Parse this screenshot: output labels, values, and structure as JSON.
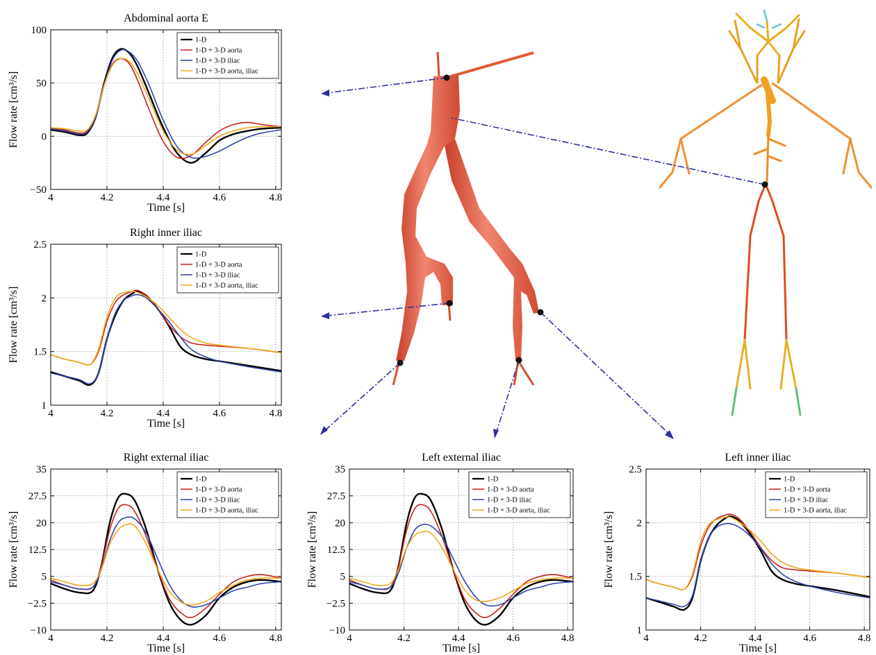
{
  "colors": {
    "1-D": "#000000",
    "1-D + 3-D aorta": "#c8201c",
    "1-D + 3-D iliac": "#2b44a8",
    "1-D + 3-D aorta, iliac": "#f0a818",
    "arrow": "#2a2ea0"
  },
  "legend_labels": [
    "1-D",
    "1-D + 3-D aorta",
    "1-D + 3-D iliac",
    "1-D + 3-D aorta, iliac"
  ],
  "chart_data": [
    {
      "id": "aorta",
      "type": "line",
      "title": "Abdominal aorta E",
      "xlabel": "Time [s]",
      "ylabel": "Flow rate [cm³/s]",
      "xlim": [
        4,
        4.82
      ],
      "ylim": [
        -50,
        100
      ],
      "xticks": [
        4,
        4.2,
        4.4,
        4.6,
        4.8
      ],
      "xtick_labels": [
        "4",
        "4.2",
        "4.4",
        "4.6",
        "4.8"
      ],
      "yticks": [
        -50,
        0,
        50,
        100
      ],
      "ytick_labels": [
        "−50",
        "0",
        "50",
        "100"
      ],
      "grid": true,
      "legend": "top-right",
      "x": [
        4.0,
        4.05,
        4.1,
        4.13,
        4.16,
        4.19,
        4.22,
        4.25,
        4.28,
        4.31,
        4.35,
        4.4,
        4.45,
        4.5,
        4.55,
        4.6,
        4.65,
        4.7,
        4.75,
        4.82
      ],
      "series": [
        {
          "name": "1-D",
          "values": [
            6,
            4,
            1,
            3,
            18,
            50,
            74,
            82,
            78,
            65,
            40,
            8,
            -16,
            -25,
            -16,
            -4,
            2,
            5,
            7,
            8
          ]
        },
        {
          "name": "1-D + 3-D aorta",
          "values": [
            8,
            6,
            3,
            5,
            20,
            48,
            68,
            73,
            68,
            52,
            25,
            -5,
            -20,
            -18,
            -6,
            5,
            11,
            13,
            11,
            9
          ]
        },
        {
          "name": "1-D + 3-D iliac",
          "values": [
            7,
            5,
            2,
            4,
            18,
            48,
            72,
            81,
            79,
            70,
            48,
            15,
            -10,
            -20,
            -19,
            -14,
            -7,
            -1,
            3,
            6
          ]
        },
        {
          "name": "1-D + 3-D aorta, iliac",
          "values": [
            8,
            7,
            5,
            6,
            20,
            48,
            67,
            73,
            70,
            58,
            35,
            5,
            -13,
            -17,
            -9,
            0,
            5,
            8,
            9,
            9
          ]
        }
      ]
    },
    {
      "id": "rinner",
      "type": "line",
      "title": "Right inner iliac",
      "xlabel": "Time [s]",
      "ylabel": "Flow rate [cm³/s]",
      "xlim": [
        4,
        4.82
      ],
      "ylim": [
        1,
        2.5
      ],
      "xticks": [
        4,
        4.2,
        4.4,
        4.6,
        4.8
      ],
      "xtick_labels": [
        "4",
        "4.2",
        "4.4",
        "4.6",
        "4.8"
      ],
      "yticks": [
        1,
        1.5,
        2,
        2.5
      ],
      "ytick_labels": [
        "1",
        "1.5",
        "2",
        "2.5"
      ],
      "grid": true,
      "legend": "top-right",
      "x": [
        4.0,
        4.05,
        4.1,
        4.14,
        4.17,
        4.2,
        4.23,
        4.26,
        4.29,
        4.31,
        4.34,
        4.38,
        4.42,
        4.46,
        4.5,
        4.55,
        4.6,
        4.7,
        4.82
      ],
      "series": [
        {
          "name": "1-D",
          "values": [
            1.31,
            1.27,
            1.23,
            1.19,
            1.3,
            1.62,
            1.84,
            1.98,
            2.04,
            2.06,
            2.02,
            1.9,
            1.74,
            1.55,
            1.47,
            1.43,
            1.41,
            1.37,
            1.32
          ]
        },
        {
          "name": "1-D + 3-D aorta",
          "values": [
            1.47,
            1.43,
            1.4,
            1.38,
            1.5,
            1.78,
            1.96,
            2.03,
            2.06,
            2.07,
            2.02,
            1.9,
            1.75,
            1.64,
            1.58,
            1.56,
            1.55,
            1.53,
            1.49
          ]
        },
        {
          "name": "1-D + 3-D iliac",
          "values": [
            1.3,
            1.27,
            1.24,
            1.2,
            1.3,
            1.62,
            1.86,
            1.98,
            2.02,
            2.03,
            2.0,
            1.9,
            1.78,
            1.64,
            1.52,
            1.45,
            1.41,
            1.36,
            1.31
          ]
        },
        {
          "name": "1-D + 3-D aorta, iliac",
          "values": [
            1.47,
            1.43,
            1.4,
            1.38,
            1.52,
            1.82,
            2.0,
            2.05,
            2.06,
            2.05,
            2.01,
            1.93,
            1.82,
            1.71,
            1.63,
            1.58,
            1.56,
            1.53,
            1.49
          ]
        }
      ]
    },
    {
      "id": "rext",
      "type": "line",
      "title": "Right external iliac",
      "xlabel": "Time [s]",
      "ylabel": "Flow rate [cm³/s]",
      "xlim": [
        4,
        4.82
      ],
      "ylim": [
        -10,
        35
      ],
      "xticks": [
        4,
        4.2,
        4.4,
        4.6,
        4.8
      ],
      "xtick_labels": [
        "4",
        "4.2",
        "4.4",
        "4.6",
        "4.8"
      ],
      "yticks": [
        -10,
        -2.5,
        5,
        12.5,
        20,
        27.5,
        35
      ],
      "ytick_labels": [
        "−10",
        "−2.5",
        "5",
        "12.5",
        "20",
        "27.5",
        "35"
      ],
      "grid": true,
      "legend": "top-right",
      "x": [
        4.0,
        4.05,
        4.1,
        4.15,
        4.18,
        4.21,
        4.24,
        4.27,
        4.3,
        4.34,
        4.38,
        4.42,
        4.46,
        4.5,
        4.55,
        4.6,
        4.65,
        4.7,
        4.75,
        4.82
      ],
      "series": [
        {
          "name": "1-D",
          "values": [
            3,
            1.5,
            0.5,
            1,
            8,
            20,
            27,
            28,
            26,
            18,
            7,
            -2,
            -7,
            -8.5,
            -6,
            -1,
            2,
            3.5,
            4,
            3.5
          ]
        },
        {
          "name": "1-D + 3-D aorta",
          "values": [
            4,
            2.5,
            1.5,
            2,
            8,
            18,
            24,
            25,
            23,
            16,
            7,
            -1,
            -5,
            -6.5,
            -4,
            0,
            3.5,
            5,
            5.5,
            4.5
          ]
        },
        {
          "name": "1-D + 3-D iliac",
          "values": [
            3.5,
            2.5,
            1.5,
            2,
            7,
            15,
            20,
            21.5,
            21,
            17,
            10,
            3,
            -1.5,
            -3.5,
            -3,
            -1,
            1,
            2,
            3,
            3.5
          ]
        },
        {
          "name": "1-D + 3-D aorta, iliac",
          "values": [
            4.5,
            3.5,
            2.5,
            3,
            7,
            14,
            18,
            19.5,
            19,
            14,
            7,
            1,
            -2,
            -3,
            -2,
            0.5,
            2.5,
            4,
            4.5,
            4.5
          ]
        }
      ]
    },
    {
      "id": "lext",
      "type": "line",
      "title": "Left external iliac",
      "xlabel": "Time [s]",
      "ylabel": "Flow rate [cm³/s]",
      "xlim": [
        4,
        4.82
      ],
      "ylim": [
        -10,
        35
      ],
      "xticks": [
        4,
        4.2,
        4.4,
        4.6,
        4.8
      ],
      "xtick_labels": [
        "4",
        "4.2",
        "4.4",
        "4.6",
        "4.8"
      ],
      "yticks": [
        -10,
        -2.5,
        5,
        12.5,
        20,
        27.5,
        35
      ],
      "ytick_labels": [
        "−10",
        "−2.5",
        "5",
        "12.5",
        "20",
        "27.5",
        "35"
      ],
      "grid": true,
      "legend": "top-right",
      "x": [
        4.0,
        4.05,
        4.1,
        4.15,
        4.18,
        4.21,
        4.24,
        4.27,
        4.3,
        4.34,
        4.38,
        4.42,
        4.46,
        4.5,
        4.55,
        4.6,
        4.65,
        4.7,
        4.75,
        4.82
      ],
      "series": [
        {
          "name": "1-D",
          "values": [
            3,
            1.5,
            0.5,
            1,
            8,
            20,
            27,
            28,
            26,
            18,
            7,
            -2,
            -7,
            -8.5,
            -6,
            -1,
            2,
            3.5,
            4,
            3.5
          ]
        },
        {
          "name": "1-D + 3-D aorta",
          "values": [
            4,
            2.5,
            1.5,
            2,
            8,
            18,
            24,
            25,
            23,
            16,
            7,
            -1,
            -5,
            -6.5,
            -4,
            0,
            3.5,
            5,
            5.5,
            4.5
          ]
        },
        {
          "name": "1-D + 3-D iliac",
          "values": [
            3.5,
            2.5,
            1.5,
            2,
            6,
            13,
            18,
            19.5,
            19,
            16,
            10,
            4,
            -0.5,
            -3,
            -3,
            -1,
            1,
            2,
            3,
            3.5
          ]
        },
        {
          "name": "1-D + 3-D aorta, iliac",
          "values": [
            4.5,
            3.5,
            2.5,
            3,
            7,
            13,
            16.5,
            17.5,
            17,
            13,
            7,
            1.5,
            -1.5,
            -2,
            -1,
            1,
            3,
            4,
            4.5,
            4.5
          ]
        }
      ]
    },
    {
      "id": "linner",
      "type": "line",
      "title": "Left inner iliac",
      "xlabel": "Time [s]",
      "ylabel": "Flow rate [cm³/s]",
      "xlim": [
        4,
        4.82
      ],
      "ylim": [
        1,
        2.5
      ],
      "xticks": [
        4,
        4.2,
        4.4,
        4.6,
        4.8
      ],
      "xtick_labels": [
        "4",
        "4.2",
        "4.4",
        "4.6",
        "4.8"
      ],
      "yticks": [
        1,
        1.5,
        2,
        2.5
      ],
      "ytick_labels": [
        "1",
        "1.5",
        "2",
        "2.5"
      ],
      "grid": true,
      "legend": "top-right",
      "x": [
        4.0,
        4.05,
        4.1,
        4.14,
        4.17,
        4.2,
        4.23,
        4.26,
        4.29,
        4.31,
        4.34,
        4.38,
        4.42,
        4.46,
        4.5,
        4.55,
        4.6,
        4.7,
        4.82
      ],
      "series": [
        {
          "name": "1-D",
          "values": [
            1.3,
            1.26,
            1.22,
            1.19,
            1.3,
            1.64,
            1.86,
            1.98,
            2.04,
            2.06,
            2.02,
            1.9,
            1.74,
            1.55,
            1.47,
            1.43,
            1.41,
            1.37,
            1.31
          ]
        },
        {
          "name": "1-D + 3-D aorta",
          "values": [
            1.47,
            1.43,
            1.4,
            1.38,
            1.5,
            1.78,
            1.96,
            2.04,
            2.07,
            2.08,
            2.04,
            1.92,
            1.77,
            1.65,
            1.58,
            1.56,
            1.55,
            1.53,
            1.49
          ]
        },
        {
          "name": "1-D + 3-D iliac",
          "values": [
            1.3,
            1.27,
            1.24,
            1.22,
            1.32,
            1.64,
            1.86,
            1.96,
            1.99,
            1.99,
            1.96,
            1.88,
            1.76,
            1.62,
            1.52,
            1.45,
            1.41,
            1.35,
            1.3
          ]
        },
        {
          "name": "1-D + 3-D aorta, iliac",
          "values": [
            1.47,
            1.43,
            1.4,
            1.38,
            1.52,
            1.82,
            1.98,
            2.03,
            2.05,
            2.05,
            2.01,
            1.93,
            1.83,
            1.71,
            1.63,
            1.58,
            1.56,
            1.53,
            1.49
          ]
        }
      ]
    }
  ]
}
